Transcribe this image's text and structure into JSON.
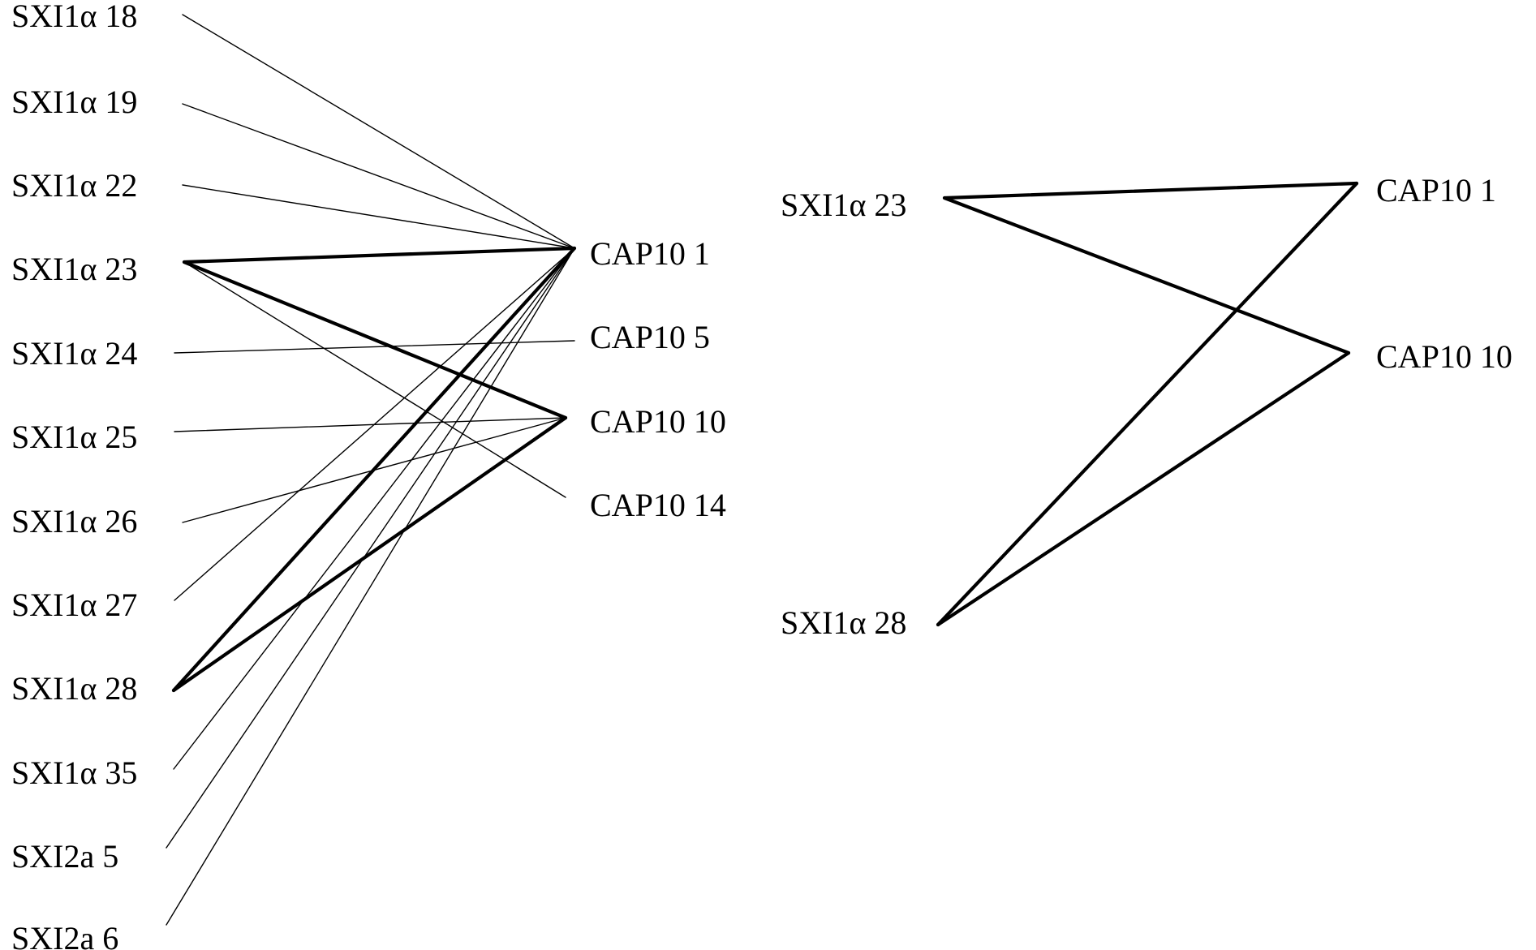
{
  "line_color": "#000000",
  "left_diagram": {
    "sources": [
      "SXI1α 18",
      "SXI1α 19",
      "SXI1α 22",
      "SXI1α 23",
      "SXI1α 24",
      "SXI1α 25",
      "SXI1α 26",
      "SXI1α 27",
      "SXI1α 28",
      "SXI1α 35",
      "SXI2a 5",
      "SXI2a 6"
    ],
    "targets": [
      "CAP10 1",
      "CAP10 5",
      "CAP10 10",
      "CAP10 14"
    ],
    "edges": [
      {
        "source": 0,
        "target": 0,
        "weight": "thin"
      },
      {
        "source": 1,
        "target": 0,
        "weight": "thin"
      },
      {
        "source": 2,
        "target": 0,
        "weight": "thin"
      },
      {
        "source": 3,
        "target": 0,
        "weight": "thick"
      },
      {
        "source": 3,
        "target": 2,
        "weight": "thick"
      },
      {
        "source": 3,
        "target": 3,
        "weight": "thin"
      },
      {
        "source": 4,
        "target": 1,
        "weight": "thin"
      },
      {
        "source": 5,
        "target": 2,
        "weight": "thin"
      },
      {
        "source": 6,
        "target": 2,
        "weight": "thin"
      },
      {
        "source": 7,
        "target": 0,
        "weight": "thin"
      },
      {
        "source": 8,
        "target": 0,
        "weight": "thick"
      },
      {
        "source": 8,
        "target": 2,
        "weight": "thick"
      },
      {
        "source": 9,
        "target": 0,
        "weight": "thin"
      },
      {
        "source": 10,
        "target": 0,
        "weight": "thin"
      },
      {
        "source": 11,
        "target": 0,
        "weight": "thin"
      }
    ]
  },
  "right_diagram": {
    "sources": [
      "SXI1α 23",
      "SXI1α 28"
    ],
    "targets": [
      "CAP10 1",
      "CAP10 10"
    ],
    "edges": [
      {
        "source": 0,
        "target": 0,
        "weight": "thick"
      },
      {
        "source": 0,
        "target": 1,
        "weight": "thick"
      },
      {
        "source": 1,
        "target": 0,
        "weight": "thick"
      },
      {
        "source": 1,
        "target": 1,
        "weight": "thick"
      }
    ]
  }
}
